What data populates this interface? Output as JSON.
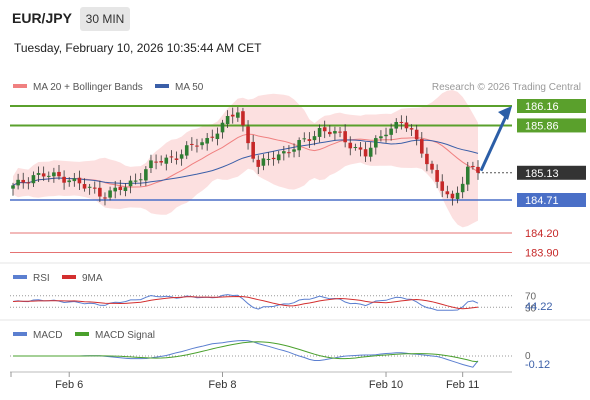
{
  "header": {
    "pair": "EUR/JPY",
    "timeframe": "30 MIN",
    "timestamp": "Tuesday, February 10, 2026 10:35:44 AM CET"
  },
  "legend": {
    "ma20": "MA 20 + Bollinger Bands",
    "ma50": "MA 50",
    "ma20_color": "#f08080",
    "ma50_color": "#3b5fa8",
    "credit": "Research © 2026 Trading Central"
  },
  "colors": {
    "bull": "#2e7d32",
    "bear": "#c62828",
    "resistance": "#5aa02c",
    "support": "#4a6fc7",
    "target": "#e57373",
    "bands": "#fbd5d5",
    "arrow": "#2b5ea7",
    "current": "#333333"
  },
  "chart_data": {
    "type": "candlestick",
    "ylim": [
      183.8,
      186.35
    ],
    "x_tick_labels": [
      "Feb 6",
      "Feb 8",
      "Feb 10",
      "Feb 11"
    ],
    "x_tick_index": [
      11,
      41,
      73,
      88
    ],
    "candle_count": 92,
    "levels": {
      "resistance": [
        186.16,
        185.86
      ],
      "current": 185.13,
      "support": 184.71,
      "targets": [
        184.2,
        183.9
      ]
    },
    "path_points": [
      {
        "i": 0,
        "v": 184.9
      },
      {
        "i": 4,
        "v": 185.1
      },
      {
        "i": 11,
        "v": 185.05
      },
      {
        "i": 14,
        "v": 184.9
      },
      {
        "i": 18,
        "v": 184.8
      },
      {
        "i": 22,
        "v": 184.9
      },
      {
        "i": 27,
        "v": 185.25
      },
      {
        "i": 32,
        "v": 185.4
      },
      {
        "i": 38,
        "v": 185.65
      },
      {
        "i": 41,
        "v": 185.85
      },
      {
        "i": 44,
        "v": 186.1
      },
      {
        "i": 46,
        "v": 185.6
      },
      {
        "i": 48,
        "v": 185.2
      },
      {
        "i": 51,
        "v": 185.4
      },
      {
        "i": 55,
        "v": 185.5
      },
      {
        "i": 60,
        "v": 185.8
      },
      {
        "i": 64,
        "v": 185.7
      },
      {
        "i": 69,
        "v": 185.4
      },
      {
        "i": 73,
        "v": 185.8
      },
      {
        "i": 76,
        "v": 185.9
      },
      {
        "i": 78,
        "v": 185.75
      },
      {
        "i": 80,
        "v": 185.5
      },
      {
        "i": 83,
        "v": 184.95
      },
      {
        "i": 86,
        "v": 184.7
      },
      {
        "i": 89,
        "v": 185.2
      },
      {
        "i": 91,
        "v": 185.13
      }
    ],
    "projection": {
      "from": 185.13,
      "to": 186.16
    },
    "rsi": {
      "label": "RSI",
      "ma_label": "9MA",
      "levels": [
        70,
        30
      ],
      "last_value": 44.22,
      "rsi_color": "#5b7fd0",
      "ma_color": "#d32f2f"
    },
    "macd": {
      "label": "MACD",
      "signal_label": "MACD Signal",
      "zero": 0,
      "last_value": -0.12,
      "macd_color": "#5b7fd0",
      "signal_color": "#4aa02c"
    }
  }
}
